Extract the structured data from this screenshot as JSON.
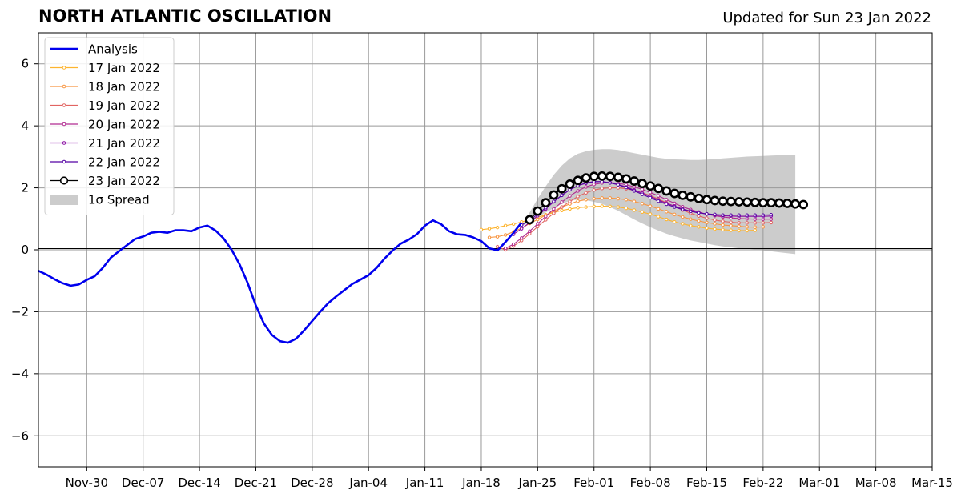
{
  "header": {
    "title": "NORTH ATLANTIC OSCILLATION",
    "updated": "Updated for Sun 23 Jan 2022"
  },
  "colors": {
    "analysis": "#0000ee",
    "spread": "#cccccc",
    "grid": "#999999",
    "zero": "#000000"
  },
  "chart_data": {
    "type": "line",
    "title": "NORTH ATLANTIC OSCILLATION",
    "xlabel": "",
    "ylabel": "",
    "x_axis": {
      "start": "2021-11-24",
      "end": "2022-03-15",
      "ticks": [
        "2021-11-30",
        "2021-12-07",
        "2021-12-14",
        "2021-12-21",
        "2021-12-28",
        "2022-01-04",
        "2022-01-11",
        "2022-01-18",
        "2022-01-25",
        "2022-02-01",
        "2022-02-08",
        "2022-02-15",
        "2022-02-22",
        "2022-03-01",
        "2022-03-08",
        "2022-03-15"
      ],
      "tick_labels": [
        "Nov-30",
        "Dec-07",
        "Dec-14",
        "Dec-21",
        "Dec-28",
        "Jan-04",
        "Jan-11",
        "Jan-18",
        "Jan-25",
        "Feb-01",
        "Feb-08",
        "Feb-15",
        "Feb-22",
        "Mar-01",
        "Mar-08",
        "Mar-15"
      ]
    },
    "ylim": [
      -7,
      7
    ],
    "y_ticks": [
      -6,
      -4,
      -2,
      0,
      2,
      4,
      6
    ],
    "y_tick_labels": [
      "−6",
      "−4",
      "−2",
      "0",
      "2",
      "4",
      "6"
    ],
    "grid": true,
    "legend_position": "top-left",
    "analysis": {
      "name": "Analysis",
      "color": "#0000ee",
      "points": [
        [
          "2021-11-24",
          -0.68
        ],
        [
          "2021-11-25",
          -0.8
        ],
        [
          "2021-11-26",
          -0.95
        ],
        [
          "2021-11-27",
          -1.08
        ],
        [
          "2021-11-28",
          -1.16
        ],
        [
          "2021-11-29",
          -1.12
        ],
        [
          "2021-11-30",
          -0.97
        ],
        [
          "2021-12-01",
          -0.85
        ],
        [
          "2021-12-02",
          -0.58
        ],
        [
          "2021-12-03",
          -0.25
        ],
        [
          "2021-12-04",
          -0.05
        ],
        [
          "2021-12-05",
          0.15
        ],
        [
          "2021-12-06",
          0.35
        ],
        [
          "2021-12-07",
          0.43
        ],
        [
          "2021-12-08",
          0.55
        ],
        [
          "2021-12-09",
          0.58
        ],
        [
          "2021-12-10",
          0.55
        ],
        [
          "2021-12-11",
          0.63
        ],
        [
          "2021-12-12",
          0.63
        ],
        [
          "2021-12-13",
          0.6
        ],
        [
          "2021-12-14",
          0.72
        ],
        [
          "2021-12-15",
          0.78
        ],
        [
          "2021-12-16",
          0.62
        ],
        [
          "2021-12-17",
          0.37
        ],
        [
          "2021-12-18",
          0.0
        ],
        [
          "2021-12-19",
          -0.48
        ],
        [
          "2021-12-20",
          -1.08
        ],
        [
          "2021-12-21",
          -1.8
        ],
        [
          "2021-12-22",
          -2.38
        ],
        [
          "2021-12-23",
          -2.75
        ],
        [
          "2021-12-24",
          -2.95
        ],
        [
          "2021-12-25",
          -3.0
        ],
        [
          "2021-12-26",
          -2.87
        ],
        [
          "2021-12-27",
          -2.6
        ],
        [
          "2021-12-28",
          -2.3
        ],
        [
          "2021-12-29",
          -2.0
        ],
        [
          "2021-12-30",
          -1.72
        ],
        [
          "2021-12-31",
          -1.5
        ],
        [
          "2022-01-01",
          -1.3
        ],
        [
          "2022-01-02",
          -1.1
        ],
        [
          "2022-01-03",
          -0.96
        ],
        [
          "2022-01-04",
          -0.82
        ],
        [
          "2022-01-05",
          -0.58
        ],
        [
          "2022-01-06",
          -0.28
        ],
        [
          "2022-01-07",
          -0.02
        ],
        [
          "2022-01-08",
          0.2
        ],
        [
          "2022-01-09",
          0.33
        ],
        [
          "2022-01-10",
          0.5
        ],
        [
          "2022-01-11",
          0.78
        ],
        [
          "2022-01-12",
          0.95
        ],
        [
          "2022-01-13",
          0.83
        ],
        [
          "2022-01-14",
          0.6
        ],
        [
          "2022-01-15",
          0.5
        ],
        [
          "2022-01-16",
          0.48
        ],
        [
          "2022-01-17",
          0.4
        ],
        [
          "2022-01-18",
          0.28
        ],
        [
          "2022-01-19",
          0.05
        ],
        [
          "2022-01-20",
          -0.02
        ],
        [
          "2022-01-21",
          0.25
        ],
        [
          "2022-01-22",
          0.55
        ],
        [
          "2022-01-23",
          0.88
        ]
      ]
    },
    "forecasts": [
      {
        "name": "17 Jan 2022",
        "color": "#fdb42f",
        "start": "2022-01-18",
        "values": [
          0.65,
          0.68,
          0.72,
          0.78,
          0.83,
          0.9,
          0.97,
          1.05,
          1.13,
          1.2,
          1.27,
          1.32,
          1.36,
          1.38,
          1.4,
          1.41,
          1.4,
          1.38,
          1.34,
          1.28,
          1.22,
          1.15,
          1.07,
          0.98,
          0.9,
          0.84,
          0.78,
          0.74,
          0.7,
          0.67,
          0.65,
          0.63,
          0.62,
          0.62,
          0.63
        ]
      },
      {
        "name": "18 Jan 2022",
        "color": "#f89540",
        "start": "2022-01-19",
        "values": [
          0.4,
          0.42,
          0.48,
          0.58,
          0.7,
          0.85,
          0.98,
          1.12,
          1.25,
          1.38,
          1.48,
          1.57,
          1.62,
          1.65,
          1.67,
          1.67,
          1.65,
          1.62,
          1.56,
          1.49,
          1.41,
          1.32,
          1.23,
          1.14,
          1.06,
          0.99,
          0.93,
          0.88,
          0.84,
          0.8,
          0.78,
          0.76,
          0.74,
          0.73,
          0.74
        ]
      },
      {
        "name": "19 Jan 2022",
        "color": "#e16462",
        "start": "2022-01-20",
        "values": [
          0.1,
          0.0,
          0.12,
          0.3,
          0.52,
          0.75,
          0.97,
          1.18,
          1.38,
          1.56,
          1.72,
          1.84,
          1.93,
          1.98,
          2.0,
          2.0,
          1.97,
          1.92,
          1.84,
          1.75,
          1.64,
          1.52,
          1.4,
          1.28,
          1.18,
          1.09,
          1.02,
          0.96,
          0.92,
          0.89,
          0.87,
          0.87,
          0.87,
          0.87,
          0.88
        ]
      },
      {
        "name": "20 Jan 2022",
        "color": "#b12a90",
        "start": "2022-01-21",
        "values": [
          0.05,
          0.18,
          0.38,
          0.6,
          0.84,
          1.08,
          1.32,
          1.54,
          1.74,
          1.9,
          2.03,
          2.11,
          2.16,
          2.17,
          2.15,
          2.1,
          2.03,
          1.95,
          1.85,
          1.74,
          1.62,
          1.5,
          1.39,
          1.3,
          1.22,
          1.15,
          1.1,
          1.06,
          1.03,
          1.01,
          1.0,
          0.99,
          0.99,
          0.99
        ]
      },
      {
        "name": "21 Jan 2022",
        "color": "#8a0da3",
        "start": "2022-01-22",
        "values": [
          0.5,
          0.68,
          0.88,
          1.1,
          1.32,
          1.55,
          1.76,
          1.94,
          2.07,
          2.15,
          2.2,
          2.2,
          2.17,
          2.11,
          2.03,
          1.93,
          1.83,
          1.72,
          1.61,
          1.5,
          1.41,
          1.32,
          1.25,
          1.2,
          1.15,
          1.12,
          1.1,
          1.09,
          1.08,
          1.08,
          1.08,
          1.08,
          1.09
        ]
      },
      {
        "name": "22 Jan 2022",
        "color": "#5302a3",
        "start": "2022-01-23",
        "values": [
          0.8,
          0.95,
          1.15,
          1.36,
          1.56,
          1.76,
          1.94,
          2.07,
          2.16,
          2.2,
          2.2,
          2.16,
          2.1,
          2.01,
          1.9,
          1.79,
          1.68,
          1.57,
          1.47,
          1.38,
          1.3,
          1.24,
          1.19,
          1.16,
          1.14,
          1.12,
          1.12,
          1.12,
          1.12,
          1.12,
          1.12,
          1.13
        ]
      },
      {
        "name": "23 Jan 2022",
        "color": "#000000",
        "start": "2022-01-24",
        "values": [
          0.97,
          1.25,
          1.52,
          1.77,
          1.97,
          2.12,
          2.24,
          2.32,
          2.37,
          2.38,
          2.37,
          2.34,
          2.29,
          2.22,
          2.14,
          2.06,
          1.98,
          1.9,
          1.82,
          1.76,
          1.71,
          1.66,
          1.62,
          1.59,
          1.57,
          1.56,
          1.55,
          1.54,
          1.53,
          1.52,
          1.52,
          1.51,
          1.5,
          1.48,
          1.46
        ]
      }
    ],
    "spread": {
      "name": "1σ Spread",
      "color": "#cccccc",
      "start": "2022-01-23",
      "upper": [
        0.75,
        1.2,
        1.65,
        2.05,
        2.42,
        2.72,
        2.95,
        3.1,
        3.18,
        3.23,
        3.25,
        3.25,
        3.22,
        3.17,
        3.12,
        3.07,
        3.02,
        2.97,
        2.94,
        2.92,
        2.91,
        2.9,
        2.9,
        2.91,
        2.93,
        2.95,
        2.97,
        2.99,
        3.01,
        3.02,
        3.03,
        3.04,
        3.05,
        3.05,
        3.05
      ],
      "lower": [
        0.75,
        0.9,
        1.05,
        1.2,
        1.35,
        1.48,
        1.58,
        1.62,
        1.6,
        1.55,
        1.48,
        1.38,
        1.26,
        1.12,
        0.98,
        0.85,
        0.73,
        0.62,
        0.52,
        0.44,
        0.37,
        0.3,
        0.25,
        0.2,
        0.15,
        0.11,
        0.08,
        0.05,
        0.03,
        0.01,
        -0.02,
        -0.05,
        -0.08,
        -0.11,
        -0.14
      ]
    }
  }
}
